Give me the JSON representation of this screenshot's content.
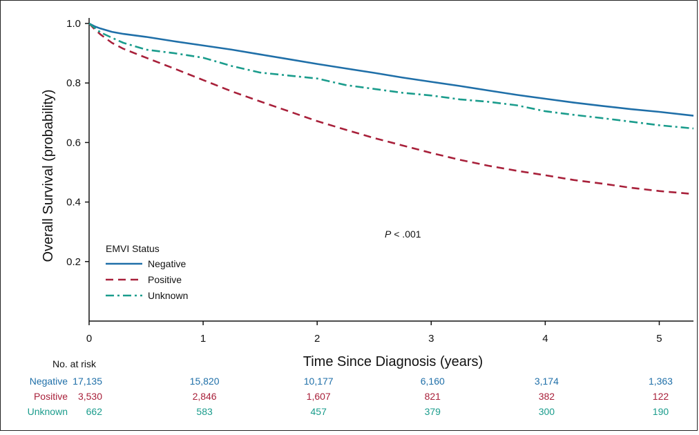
{
  "chart_data": {
    "type": "line",
    "xlabel": "Time Since Diagnosis (years)",
    "ylabel": "Overall Survival (probability)",
    "xlim": [
      0,
      5.3
    ],
    "ylim": [
      0,
      1.0
    ],
    "x_ticks": [
      0,
      1,
      2,
      3,
      4,
      5
    ],
    "y_ticks": [
      0.2,
      0.4,
      0.6,
      0.8,
      1.0
    ],
    "y_tick_labels": [
      "0.2",
      "0.4",
      "0.6",
      "0.8",
      "1.0"
    ],
    "grid": false,
    "annotation": {
      "prefix": "P",
      "text": " < .001"
    },
    "legend": {
      "title": "EMVI Status",
      "placement": "bottom-left"
    },
    "series": [
      {
        "name": "Negative",
        "color": "#1f6fa8",
        "line_style": "solid",
        "x": [
          0,
          0.05,
          0.1,
          0.2,
          0.3,
          0.5,
          0.75,
          1.0,
          1.25,
          1.5,
          1.75,
          2.0,
          2.25,
          2.5,
          2.75,
          3.0,
          3.25,
          3.5,
          3.75,
          4.0,
          4.25,
          4.5,
          4.75,
          5.0,
          5.3
        ],
        "y": [
          1.0,
          0.99,
          0.983,
          0.972,
          0.965,
          0.955,
          0.94,
          0.926,
          0.912,
          0.896,
          0.88,
          0.864,
          0.849,
          0.834,
          0.818,
          0.804,
          0.79,
          0.775,
          0.76,
          0.747,
          0.734,
          0.723,
          0.712,
          0.703,
          0.69
        ]
      },
      {
        "name": "Positive",
        "color": "#a8203a",
        "line_style": "dashed",
        "x": [
          0,
          0.05,
          0.1,
          0.2,
          0.3,
          0.5,
          0.75,
          1.0,
          1.25,
          1.5,
          1.75,
          2.0,
          2.25,
          2.5,
          2.75,
          3.0,
          3.25,
          3.5,
          3.75,
          4.0,
          4.25,
          4.5,
          4.75,
          5.0,
          5.3
        ],
        "y": [
          1.0,
          0.98,
          0.963,
          0.935,
          0.915,
          0.885,
          0.848,
          0.81,
          0.772,
          0.738,
          0.705,
          0.672,
          0.643,
          0.615,
          0.59,
          0.565,
          0.542,
          0.522,
          0.505,
          0.49,
          0.474,
          0.462,
          0.448,
          0.437,
          0.427
        ]
      },
      {
        "name": "Unknown",
        "color": "#1a9c8c",
        "line_style": "dashdot",
        "x": [
          0,
          0.05,
          0.1,
          0.2,
          0.3,
          0.5,
          0.75,
          1.0,
          1.25,
          1.5,
          1.75,
          2.0,
          2.25,
          2.5,
          2.75,
          3.0,
          3.25,
          3.5,
          3.75,
          4.0,
          4.25,
          4.5,
          4.75,
          5.0,
          5.3
        ],
        "y": [
          1.0,
          0.985,
          0.97,
          0.952,
          0.935,
          0.912,
          0.9,
          0.885,
          0.857,
          0.835,
          0.825,
          0.815,
          0.793,
          0.78,
          0.767,
          0.758,
          0.745,
          0.737,
          0.725,
          0.705,
          0.693,
          0.682,
          0.67,
          0.658,
          0.647
        ]
      }
    ],
    "risk_table": {
      "title": "No. at risk",
      "rows": [
        {
          "name": "Negative",
          "color": "#1f6fa8",
          "values": [
            "17,135",
            "15,820",
            "10,177",
            "6,160",
            "3,174",
            "1,363"
          ]
        },
        {
          "name": "Positive",
          "color": "#a8203a",
          "values": [
            "3,530",
            "2,846",
            "1,607",
            "821",
            "382",
            "122"
          ]
        },
        {
          "name": "Unknown",
          "color": "#1a9c8c",
          "values": [
            "662",
            "583",
            "457",
            "379",
            "300",
            "190"
          ]
        }
      ]
    }
  }
}
